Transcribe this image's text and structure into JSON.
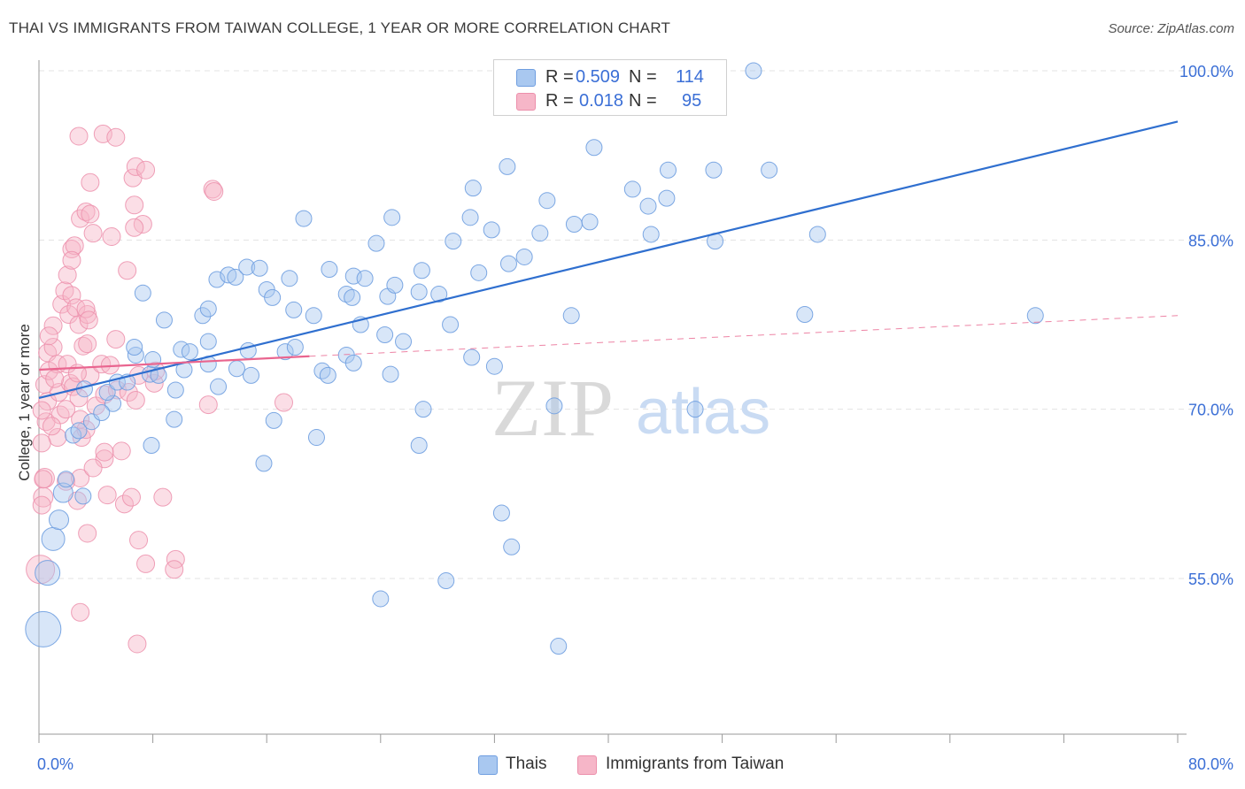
{
  "title": "THAI VS IMMIGRANTS FROM TAIWAN COLLEGE, 1 YEAR OR MORE CORRELATION CHART",
  "source": "Source: ZipAtlas.com",
  "watermark": {
    "zip": "ZIP",
    "atlas": "atlas"
  },
  "colors": {
    "blue_fill": "#a9c8f0",
    "blue_stroke": "#6f9ee0",
    "blue_line": "#2f6fcf",
    "pink_fill": "#f6b6c8",
    "pink_stroke": "#ec8fab",
    "pink_line": "#e9658f",
    "value_text": "#3b6fd6",
    "grid": "#e3e3e3"
  },
  "legend_top": {
    "rows": [
      {
        "r_label": "R =",
        "r_value": "0.509",
        "n_label": "N =",
        "n_value": "114"
      },
      {
        "r_label": "R =",
        "r_value": "0.018",
        "n_label": "N =",
        "n_value": "95"
      }
    ]
  },
  "legend_bottom": {
    "items": [
      {
        "label": "Thais"
      },
      {
        "label": "Immigrants from Taiwan"
      }
    ]
  },
  "chart_data": {
    "type": "scatter",
    "title": "THAI VS IMMIGRANTS FROM TAIWAN COLLEGE, 1 YEAR OR MORE CORRELATION CHART",
    "xlabel": "",
    "ylabel": "College, 1 year or more",
    "xlim": [
      0,
      80
    ],
    "ylim": [
      40,
      102
    ],
    "x_tick_labels": [
      "0.0%",
      "80.0%"
    ],
    "y_ticks": [
      55,
      70,
      85,
      100
    ],
    "y_tick_labels": [
      "55.0%",
      "70.0%",
      "85.0%",
      "100.0%"
    ],
    "grid": true,
    "legend_position": "top-center",
    "series": [
      {
        "name": "Thais",
        "R": 0.509,
        "N": 114,
        "trend": {
          "x": [
            0,
            80
          ],
          "y": [
            71.0,
            95.5
          ],
          "style": "solid"
        },
        "points": [
          [
            0.3,
            50.5,
            20
          ],
          [
            0.6,
            55.5,
            14
          ],
          [
            1.0,
            58.5,
            13
          ],
          [
            1.4,
            60.2,
            11
          ],
          [
            1.7,
            62.6,
            11
          ],
          [
            3.1,
            62.3,
            9
          ],
          [
            1.9,
            63.8,
            9
          ],
          [
            2.4,
            67.7,
            9
          ],
          [
            2.8,
            68.1,
            9
          ],
          [
            3.7,
            68.9,
            9
          ],
          [
            5.2,
            70.5,
            9
          ],
          [
            4.8,
            71.5,
            9
          ],
          [
            3.2,
            71.8,
            9
          ],
          [
            5.5,
            72.4,
            9
          ],
          [
            4.4,
            69.7,
            9
          ],
          [
            6.2,
            72.4,
            9
          ],
          [
            6.8,
            74.8,
            9
          ],
          [
            7.8,
            73.1,
            9
          ],
          [
            8.0,
            74.4,
            9
          ],
          [
            8.4,
            73.0,
            9
          ],
          [
            9.6,
            71.7,
            9
          ],
          [
            10.0,
            75.3,
            9
          ],
          [
            10.6,
            75.1,
            9
          ],
          [
            10.2,
            73.5,
            9
          ],
          [
            11.9,
            74.0,
            9
          ],
          [
            11.9,
            76.0,
            9
          ],
          [
            12.6,
            72.0,
            9
          ],
          [
            13.9,
            73.6,
            9
          ],
          [
            14.7,
            75.2,
            9
          ],
          [
            14.9,
            73.0,
            9
          ],
          [
            15.8,
            65.2,
            9
          ],
          [
            16.5,
            69.0,
            9
          ],
          [
            17.3,
            75.1,
            9
          ],
          [
            18.0,
            75.5,
            9
          ],
          [
            19.5,
            67.5,
            9
          ],
          [
            19.9,
            73.4,
            9
          ],
          [
            20.3,
            73.0,
            9
          ],
          [
            21.6,
            74.8,
            9
          ],
          [
            22.1,
            74.1,
            9
          ],
          [
            24.3,
            76.6,
            9
          ],
          [
            24.7,
            73.1,
            9
          ],
          [
            25.6,
            76.0,
            9
          ],
          [
            27.0,
            70.0,
            9
          ],
          [
            26.7,
            66.8,
            9
          ],
          [
            28.6,
            54.8,
            9
          ],
          [
            24.0,
            53.2,
            9
          ],
          [
            30.4,
            74.6,
            9
          ],
          [
            32.0,
            73.8,
            9
          ],
          [
            32.5,
            60.8,
            9
          ],
          [
            33.2,
            57.8,
            9
          ],
          [
            36.5,
            49.0,
            9
          ],
          [
            36.2,
            70.3,
            9
          ],
          [
            46.1,
            70.0,
            9
          ],
          [
            7.9,
            66.8,
            9
          ],
          [
            9.5,
            69.1,
            9
          ],
          [
            6.7,
            75.5,
            9
          ],
          [
            7.3,
            80.3,
            9
          ],
          [
            8.8,
            77.9,
            9
          ],
          [
            11.5,
            78.3,
            9
          ],
          [
            11.9,
            78.9,
            9
          ],
          [
            12.5,
            81.5,
            9
          ],
          [
            13.3,
            81.9,
            9
          ],
          [
            13.8,
            81.7,
            9
          ],
          [
            14.6,
            82.6,
            9
          ],
          [
            15.5,
            82.5,
            9
          ],
          [
            16.0,
            80.6,
            9
          ],
          [
            16.4,
            79.9,
            9
          ],
          [
            17.6,
            81.6,
            9
          ],
          [
            17.9,
            78.8,
            9
          ],
          [
            19.3,
            78.3,
            9
          ],
          [
            20.4,
            82.4,
            9
          ],
          [
            21.6,
            80.2,
            9
          ],
          [
            22.0,
            79.9,
            9
          ],
          [
            22.1,
            81.8,
            9
          ],
          [
            22.9,
            81.6,
            9
          ],
          [
            22.6,
            77.5,
            9
          ],
          [
            24.5,
            80.0,
            9
          ],
          [
            25.0,
            81.0,
            9
          ],
          [
            26.7,
            80.4,
            9
          ],
          [
            26.9,
            82.3,
            9
          ],
          [
            28.1,
            80.2,
            9
          ],
          [
            28.9,
            77.5,
            9
          ],
          [
            30.9,
            82.1,
            9
          ],
          [
            33.0,
            82.9,
            9
          ],
          [
            34.1,
            83.5,
            9
          ],
          [
            35.2,
            85.6,
            9
          ],
          [
            35.7,
            88.5,
            9
          ],
          [
            37.6,
            86.4,
            9
          ],
          [
            38.7,
            86.6,
            9
          ],
          [
            37.4,
            78.3,
            9
          ],
          [
            41.7,
            89.5,
            9
          ],
          [
            43.0,
            85.5,
            9
          ],
          [
            42.8,
            88.0,
            9
          ],
          [
            44.1,
            88.7,
            9
          ],
          [
            44.2,
            91.2,
            9
          ],
          [
            47.5,
            84.9,
            9
          ],
          [
            47.4,
            91.2,
            9
          ],
          [
            50.2,
            100.0,
            9
          ],
          [
            51.3,
            91.2,
            9
          ],
          [
            53.8,
            78.4,
            9
          ],
          [
            54.7,
            85.5,
            9
          ],
          [
            70.0,
            78.3,
            9
          ],
          [
            31.8,
            85.9,
            9
          ],
          [
            32.9,
            91.5,
            9
          ],
          [
            30.3,
            87.0,
            9
          ],
          [
            29.1,
            84.9,
            9
          ],
          [
            30.5,
            89.6,
            9
          ],
          [
            23.7,
            84.7,
            9
          ],
          [
            24.8,
            87.0,
            9
          ],
          [
            18.6,
            86.9,
            9
          ],
          [
            39.0,
            93.2,
            9
          ]
        ]
      },
      {
        "name": "Immigrants from Taiwan",
        "R": 0.018,
        "N": 95,
        "trend": {
          "x": [
            0,
            19
          ],
          "y": [
            73.5,
            74.7
          ],
          "style": "solid",
          "dashed_extension": {
            "x": [
              19,
              80
            ],
            "y": [
              74.7,
              78.3
            ]
          }
        },
        "points": [
          [
            0.1,
            55.8,
            16
          ],
          [
            0.3,
            62.2,
            11
          ],
          [
            0.4,
            63.9,
            11
          ],
          [
            0.5,
            68.9,
            10
          ],
          [
            0.6,
            70.7,
            10
          ],
          [
            0.4,
            72.2,
            10
          ],
          [
            0.7,
            73.4,
            10
          ],
          [
            0.6,
            75.0,
            10
          ],
          [
            1.0,
            75.5,
            10
          ],
          [
            1.0,
            77.4,
            10
          ],
          [
            1.3,
            74.0,
            10
          ],
          [
            1.4,
            71.5,
            10
          ],
          [
            1.5,
            69.5,
            10
          ],
          [
            1.3,
            67.5,
            10
          ],
          [
            2.0,
            74.0,
            10
          ],
          [
            2.2,
            72.3,
            10
          ],
          [
            2.4,
            72.0,
            10
          ],
          [
            2.8,
            71.0,
            10
          ],
          [
            2.9,
            69.1,
            10
          ],
          [
            3.0,
            67.5,
            10
          ],
          [
            3.3,
            68.2,
            10
          ],
          [
            1.6,
            79.3,
            10
          ],
          [
            1.8,
            80.5,
            10
          ],
          [
            2.0,
            81.9,
            10
          ],
          [
            2.3,
            80.1,
            10
          ],
          [
            2.1,
            78.4,
            10
          ],
          [
            2.6,
            79.0,
            10
          ],
          [
            2.8,
            77.5,
            10
          ],
          [
            3.1,
            75.6,
            10
          ],
          [
            3.4,
            78.4,
            10
          ],
          [
            3.3,
            78.9,
            10
          ],
          [
            3.5,
            77.9,
            10
          ],
          [
            3.4,
            75.8,
            10
          ],
          [
            3.6,
            73.0,
            10
          ],
          [
            4.0,
            70.3,
            10
          ],
          [
            4.4,
            74.0,
            10
          ],
          [
            4.6,
            71.3,
            10
          ],
          [
            5.0,
            73.9,
            10
          ],
          [
            5.5,
            71.7,
            10
          ],
          [
            6.3,
            71.5,
            10
          ],
          [
            6.8,
            70.8,
            10
          ],
          [
            7.0,
            73.0,
            10
          ],
          [
            8.1,
            72.3,
            10
          ],
          [
            8.2,
            73.4,
            10
          ],
          [
            11.9,
            70.4,
            10
          ],
          [
            17.2,
            70.6,
            10
          ],
          [
            2.3,
            84.2,
            10
          ],
          [
            2.5,
            84.5,
            10
          ],
          [
            2.3,
            83.2,
            10
          ],
          [
            2.9,
            86.9,
            10
          ],
          [
            3.3,
            87.5,
            10
          ],
          [
            3.6,
            90.1,
            10
          ],
          [
            3.8,
            85.6,
            10
          ],
          [
            4.5,
            94.4,
            10
          ],
          [
            5.1,
            85.3,
            10
          ],
          [
            5.4,
            76.2,
            10
          ],
          [
            6.2,
            82.3,
            10
          ],
          [
            6.6,
            90.5,
            10
          ],
          [
            6.7,
            88.1,
            10
          ],
          [
            6.8,
            91.5,
            10
          ],
          [
            7.3,
            86.4,
            10
          ],
          [
            6.7,
            86.1,
            10
          ],
          [
            12.2,
            89.5,
            10
          ],
          [
            12.3,
            89.3,
            10
          ],
          [
            3.6,
            87.3,
            10
          ],
          [
            2.8,
            94.2,
            10
          ],
          [
            1.9,
            63.6,
            10
          ],
          [
            2.9,
            63.9,
            10
          ],
          [
            2.7,
            61.9,
            10
          ],
          [
            3.4,
            59.0,
            10
          ],
          [
            4.6,
            65.6,
            10
          ],
          [
            4.8,
            62.4,
            10
          ],
          [
            6.0,
            61.6,
            10
          ],
          [
            6.5,
            62.2,
            10
          ],
          [
            7.0,
            58.4,
            10
          ],
          [
            7.5,
            56.3,
            10
          ],
          [
            8.7,
            62.2,
            10
          ],
          [
            9.6,
            56.7,
            10
          ],
          [
            9.5,
            55.8,
            10
          ],
          [
            6.9,
            49.2,
            10
          ],
          [
            2.9,
            52.0,
            10
          ],
          [
            5.8,
            66.3,
            10
          ],
          [
            4.6,
            66.2,
            10
          ],
          [
            3.8,
            64.8,
            10
          ],
          [
            0.2,
            69.9,
            10
          ],
          [
            0.2,
            67.0,
            10
          ],
          [
            0.3,
            63.8,
            10
          ],
          [
            0.2,
            61.5,
            10
          ],
          [
            1.9,
            70.0,
            10
          ],
          [
            2.7,
            73.2,
            10
          ],
          [
            5.4,
            94.1,
            10
          ],
          [
            7.5,
            91.2,
            10
          ],
          [
            0.9,
            68.5,
            10
          ],
          [
            1.1,
            72.7,
            10
          ],
          [
            0.7,
            76.5,
            10
          ]
        ]
      }
    ]
  }
}
